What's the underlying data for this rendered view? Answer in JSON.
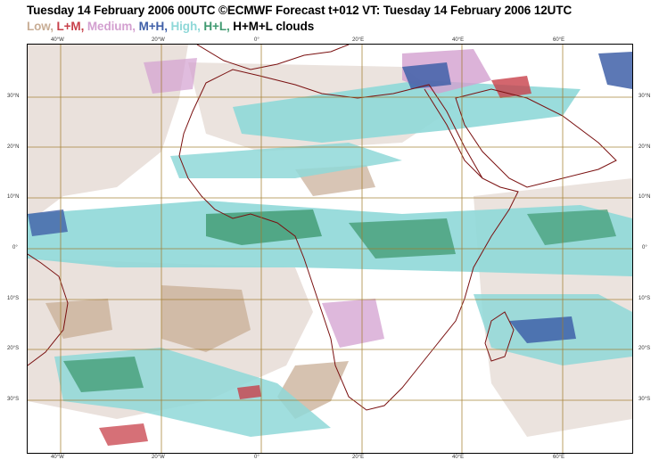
{
  "header": {
    "title": "Tuesday 14 February 2006 00UTC ©ECMWF Forecast t+012 VT: Tuesday 14 February 2006 12UTC",
    "legend": [
      {
        "label": "Low,",
        "color": "#c8ad95"
      },
      {
        "label": "L+M,",
        "color": "#c8404a"
      },
      {
        "label": "Medium,",
        "color": "#d3a0d0"
      },
      {
        "label": "M+H,",
        "color": "#4060a8"
      },
      {
        "label": "High,",
        "color": "#8fd8d8"
      },
      {
        "label": "H+L,",
        "color": "#3f9a70"
      },
      {
        "label": "H+M+L clouds",
        "color": "#000000"
      }
    ]
  },
  "map": {
    "lon_ticks": [
      "40°W",
      "20°W",
      "0°",
      "20°E",
      "40°E",
      "60°E"
    ],
    "lat_ticks_left": [
      "30°N",
      "20°N",
      "10°N",
      "0°",
      "10°S",
      "20°S",
      "30°S"
    ],
    "lat_ticks_right": [
      "30°N",
      "20°N",
      "10°N",
      "0°",
      "10°S",
      "20°S",
      "30°S"
    ],
    "colors": {
      "grid": "#a07a2a",
      "coast": "#7a1010",
      "low": "#c8ad95",
      "lowlight": "#e6dcd6",
      "medium": "#d3a0d0",
      "mh": "#4060a8",
      "high": "#8fd8d8",
      "hl": "#3f9a70",
      "lm": "#c8404a"
    }
  }
}
